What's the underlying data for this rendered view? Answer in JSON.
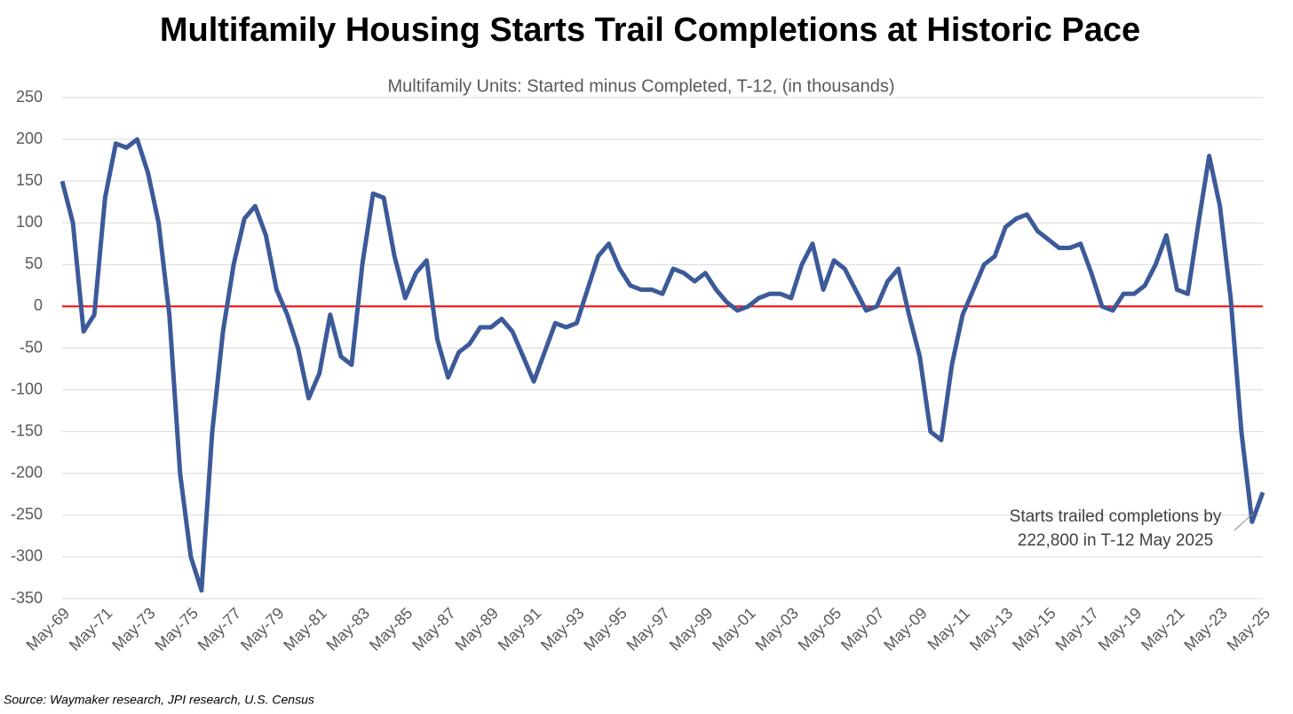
{
  "chart_data": {
    "type": "line",
    "title": "Multifamily Housing Starts Trail Completions at Historic Pace",
    "subtitle": "Multifamily Units: Started minus Completed, T-12, (in thousands)",
    "source": "Source: Waymaker research, JPI research, U.S. Census",
    "annotation": [
      "Starts trailed completions by",
      "222,800 in T-12 May 2025"
    ],
    "x": [
      "May-69",
      "Nov-69",
      "May-70",
      "Nov-70",
      "May-71",
      "Nov-71",
      "May-72",
      "Nov-72",
      "May-73",
      "Nov-73",
      "May-74",
      "Nov-74",
      "May-75",
      "Nov-75",
      "May-76",
      "Nov-76",
      "May-77",
      "Nov-77",
      "May-78",
      "Nov-78",
      "May-79",
      "Nov-79",
      "May-80",
      "Nov-80",
      "May-81",
      "Nov-81",
      "May-82",
      "Nov-82",
      "May-83",
      "Nov-83",
      "May-84",
      "Nov-84",
      "May-85",
      "Nov-85",
      "May-86",
      "Nov-86",
      "May-87",
      "Nov-87",
      "May-88",
      "Nov-88",
      "May-89",
      "Nov-89",
      "May-90",
      "Nov-90",
      "May-91",
      "Nov-91",
      "May-92",
      "Nov-92",
      "May-93",
      "Nov-93",
      "May-94",
      "Nov-94",
      "May-95",
      "Nov-95",
      "May-96",
      "Nov-96",
      "May-97",
      "Nov-97",
      "May-98",
      "Nov-98",
      "May-99",
      "Nov-99",
      "May-00",
      "Nov-00",
      "May-01",
      "Nov-01",
      "May-02",
      "Nov-02",
      "May-03",
      "Nov-03",
      "May-04",
      "Nov-04",
      "May-05",
      "Nov-05",
      "May-06",
      "Nov-06",
      "May-07",
      "Nov-07",
      "May-08",
      "Nov-08",
      "May-09",
      "Nov-09",
      "May-10",
      "Nov-10",
      "May-11",
      "Nov-11",
      "May-12",
      "Nov-12",
      "May-13",
      "Nov-13",
      "May-14",
      "Nov-14",
      "May-15",
      "Nov-15",
      "May-16",
      "Nov-16",
      "May-17",
      "Nov-17",
      "May-18",
      "Nov-18",
      "May-19",
      "Nov-19",
      "May-20",
      "Nov-20",
      "May-21",
      "Nov-21",
      "May-22",
      "Nov-22",
      "May-23",
      "Nov-23",
      "May-24",
      "Nov-24",
      "May-25"
    ],
    "series": [
      {
        "name": "Multifamily Units: Started minus Completed",
        "color": "#3c5a99",
        "values": [
          150,
          100,
          -30,
          -10,
          130,
          195,
          190,
          200,
          160,
          100,
          -10,
          -200,
          -300,
          -340,
          -150,
          -30,
          50,
          105,
          120,
          85,
          20,
          -10,
          -50,
          -110,
          -80,
          -10,
          -60,
          -70,
          50,
          135,
          130,
          60,
          10,
          40,
          55,
          -40,
          -85,
          -55,
          -45,
          -25,
          -25,
          -15,
          -30,
          -60,
          -90,
          -55,
          -20,
          -25,
          -20,
          20,
          60,
          75,
          45,
          25,
          20,
          20,
          15,
          45,
          40,
          30,
          40,
          20,
          5,
          -5,
          0,
          10,
          15,
          15,
          10,
          50,
          75,
          20,
          55,
          45,
          20,
          -5,
          0,
          30,
          45,
          -10,
          -60,
          -150,
          -160,
          -70,
          -10,
          20,
          50,
          60,
          95,
          105,
          110,
          90,
          80,
          70,
          70,
          75,
          40,
          0,
          -5,
          15,
          15,
          25,
          50,
          85,
          20,
          15,
          100,
          180,
          120,
          10,
          -150,
          -258,
          -222.8
        ]
      }
    ],
    "xticks": [
      "May-69",
      "May-71",
      "May-73",
      "May-75",
      "May-77",
      "May-79",
      "May-81",
      "May-83",
      "May-85",
      "May-87",
      "May-89",
      "May-91",
      "May-93",
      "May-95",
      "May-97",
      "May-99",
      "May-01",
      "May-03",
      "May-05",
      "May-07",
      "May-09",
      "May-11",
      "May-13",
      "May-15",
      "May-17",
      "May-19",
      "May-21",
      "May-23",
      "May-25"
    ],
    "ylim": [
      -350,
      250
    ],
    "yticks": [
      -350,
      -300,
      -250,
      -200,
      -150,
      -100,
      -50,
      0,
      50,
      100,
      150,
      200,
      250
    ],
    "grid": true,
    "reference_line": {
      "value": 0,
      "color": "#ff0000"
    }
  }
}
